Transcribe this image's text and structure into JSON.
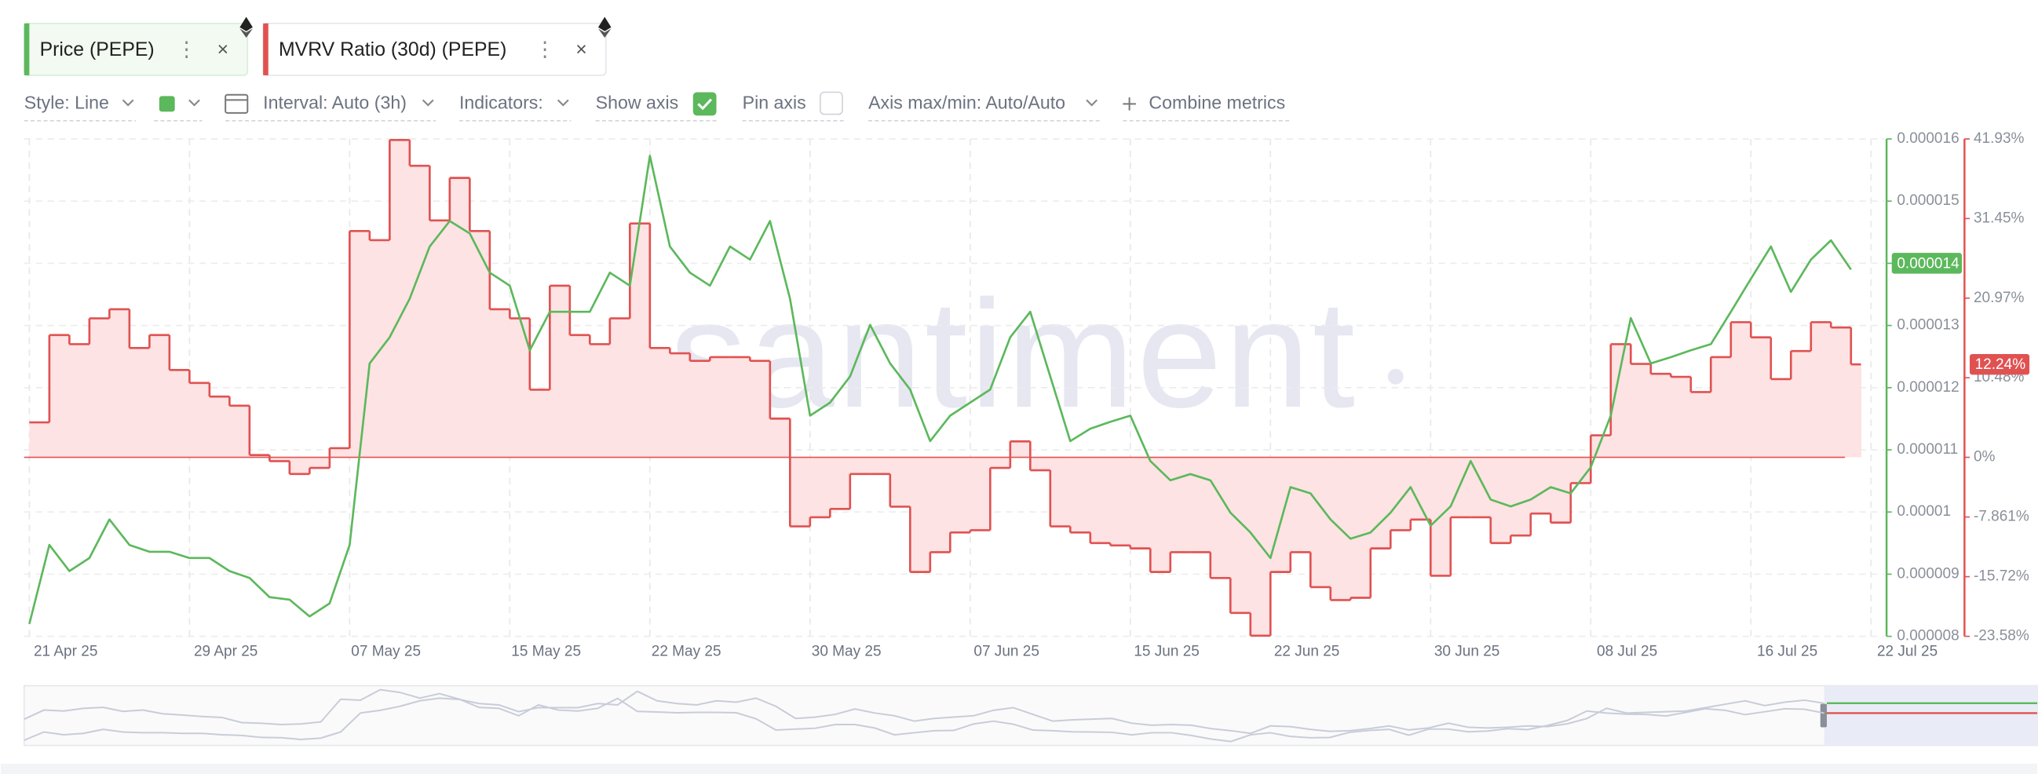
{
  "toolbar": {
    "style": "Style: Line",
    "interval": "Interval: Auto (3h)",
    "indicators": "Indicators:",
    "show_axis": "Show axis",
    "pin_axis": "Pin axis",
    "axis_minmax": "Axis max/min: Auto/Auto",
    "combine": "Combine metrics"
  },
  "watermark": "santiment",
  "chart_data": {
    "type": "line",
    "x": [
      "21 Apr 25",
      "22 Apr 25",
      "23 Apr 25",
      "24 Apr 25",
      "25 Apr 25",
      "26 Apr 25",
      "27 Apr 25",
      "28 Apr 25",
      "29 Apr 25",
      "30 Apr 25",
      "01 May 25",
      "02 May 25",
      "03 May 25",
      "04 May 25",
      "05 May 25",
      "06 May 25",
      "07 May 25",
      "08 May 25",
      "09 May 25",
      "10 May 25",
      "11 May 25",
      "12 May 25",
      "13 May 25",
      "14 May 25",
      "15 May 25",
      "16 May 25",
      "17 May 25",
      "18 May 25",
      "19 May 25",
      "20 May 25",
      "21 May 25",
      "22 May 25",
      "23 May 25",
      "24 May 25",
      "25 May 25",
      "26 May 25",
      "27 May 25",
      "28 May 25",
      "29 May 25",
      "30 May 25",
      "31 May 25",
      "01 Jun 25",
      "02 Jun 25",
      "03 Jun 25",
      "04 Jun 25",
      "05 Jun 25",
      "06 Jun 25",
      "07 Jun 25",
      "08 Jun 25",
      "09 Jun 25",
      "10 Jun 25",
      "11 Jun 25",
      "12 Jun 25",
      "13 Jun 25",
      "14 Jun 25",
      "15 Jun 25",
      "16 Jun 25",
      "17 Jun 25",
      "18 Jun 25",
      "19 Jun 25",
      "20 Jun 25",
      "21 Jun 25",
      "22 Jun 25",
      "23 Jun 25",
      "24 Jun 25",
      "25 Jun 25",
      "26 Jun 25",
      "27 Jun 25",
      "28 Jun 25",
      "29 Jun 25",
      "30 Jun 25",
      "01 Jul 25",
      "02 Jul 25",
      "03 Jul 25",
      "04 Jul 25",
      "05 Jul 25",
      "06 Jul 25",
      "07 Jul 25",
      "08 Jul 25",
      "09 Jul 25",
      "10 Jul 25",
      "11 Jul 25",
      "12 Jul 25",
      "13 Jul 25",
      "14 Jul 25",
      "15 Jul 25",
      "16 Jul 25",
      "17 Jul 25",
      "18 Jul 25",
      "19 Jul 25",
      "20 Jul 25",
      "21 Jul 25"
    ],
    "series": [
      {
        "name": "Price (PEPE)",
        "color": "#5cb85c",
        "axis": "y",
        "latest": 1.4e-05,
        "values": [
          8.2e-06,
          9.47e-06,
          9.05e-06,
          9.26e-06,
          9.88e-06,
          9.47e-06,
          9.36e-06,
          9.36e-06,
          9.26e-06,
          9.26e-06,
          9.05e-06,
          8.94e-06,
          8.63e-06,
          8.59e-06,
          8.32e-06,
          8.53e-06,
          9.47e-06,
          1.239e-05,
          1.281e-05,
          1.343e-05,
          1.427e-05,
          1.468e-05,
          1.448e-05,
          1.385e-05,
          1.364e-05,
          1.26e-05,
          1.322e-05,
          1.322e-05,
          1.322e-05,
          1.385e-05,
          1.364e-05,
          1.573e-05,
          1.427e-05,
          1.385e-05,
          1.364e-05,
          1.427e-05,
          1.406e-05,
          1.468e-05,
          1.343e-05,
          1.155e-05,
          1.176e-05,
          1.218e-05,
          1.301e-05,
          1.239e-05,
          1.197e-05,
          1.114e-05,
          1.155e-05,
          1.176e-05,
          1.197e-05,
          1.281e-05,
          1.322e-05,
          1.218e-05,
          1.114e-05,
          1.134e-05,
          1.145e-05,
          1.155e-05,
          1.082e-05,
          1.051e-05,
          1.061e-05,
          1.051e-05,
          9.99e-06,
          9.67e-06,
          9.26e-06,
          1.04e-05,
          1.03e-05,
          9.88e-06,
          9.57e-06,
          9.67e-06,
          9.99e-06,
          1.04e-05,
          9.78e-06,
          1.009e-05,
          1.082e-05,
          1.02e-05,
          1.009e-05,
          1.02e-05,
          1.04e-05,
          1.03e-05,
          1.072e-05,
          1.155e-05,
          1.312e-05,
          1.239e-05,
          1.249e-05,
          1.26e-05,
          1.27e-05,
          1.322e-05,
          1.375e-05,
          1.427e-05,
          1.354e-05,
          1.406e-05,
          1.437e-05,
          1.39e-05
        ]
      },
      {
        "name": "MVRV Ratio (30d) (PEPE)",
        "color": "#e05252",
        "axis": "y2",
        "step": true,
        "fill": "#fde3e3",
        "latest": {
          "value": 12.24,
          "label": "12.24%"
        },
        "values": [
          4.6,
          16.1,
          14.9,
          18.3,
          19.5,
          14.4,
          16.1,
          11.5,
          9.8,
          8.0,
          6.8,
          0.3,
          -0.5,
          -2.2,
          -1.4,
          1.2,
          29.8,
          28.6,
          41.8,
          38.4,
          31.2,
          36.8,
          29.8,
          19.5,
          18.3,
          8.9,
          22.6,
          16.1,
          14.9,
          18.3,
          30.8,
          14.4,
          13.7,
          12.7,
          13.2,
          13.2,
          12.7,
          5.1,
          -9.1,
          -7.9,
          -6.8,
          -2.2,
          -2.2,
          -6.5,
          -15.1,
          -12.5,
          -9.9,
          -9.6,
          -1.4,
          2.1,
          -1.7,
          -9.1,
          -9.9,
          -11.3,
          -11.6,
          -12.0,
          -15.1,
          -12.5,
          -12.5,
          -15.9,
          -20.5,
          -23.5,
          -15.1,
          -12.5,
          -17.1,
          -18.8,
          -18.5,
          -12.0,
          -9.6,
          -8.2,
          -15.6,
          -7.9,
          -7.9,
          -11.3,
          -10.3,
          -7.4,
          -8.6,
          -3.4,
          2.9,
          14.9,
          12.3,
          11.0,
          10.6,
          8.6,
          13.2,
          17.8,
          15.8,
          10.3,
          14.0,
          17.8,
          17.1,
          12.24
        ]
      }
    ],
    "xlim": [
      "21 Apr 25",
      "22 Jul 25"
    ],
    "xticks": [
      "21 Apr 25",
      "29 Apr 25",
      "07 May 25",
      "15 May 25",
      "22 May 25",
      "30 May 25",
      "07 Jun 25",
      "15 Jun 25",
      "22 Jun 25",
      "30 Jun 25",
      "08 Jul 25",
      "16 Jul 25",
      "22 Jul 25"
    ],
    "ylim": [
      8e-06,
      1.6e-05
    ],
    "yticks": [
      8e-06,
      9e-06,
      1e-05,
      1.1e-05,
      1.2e-05,
      1.3e-05,
      1.4e-05,
      1.5e-05,
      1.6e-05
    ],
    "y2lim": [
      -23.58,
      41.93
    ],
    "y2ticks": [
      {
        "value": -23.58,
        "label": "-23.58%"
      },
      {
        "value": -15.72,
        "label": "-15.72%"
      },
      {
        "value": -7.861,
        "label": "-7.861%"
      },
      {
        "value": 0,
        "label": "0%"
      },
      {
        "value": 10.48,
        "label": "10.48%"
      },
      {
        "value": 20.97,
        "label": "20.97%"
      },
      {
        "value": 31.45,
        "label": "31.45%"
      },
      {
        "value": 41.93,
        "label": "41.93%"
      }
    ],
    "grid": true
  }
}
